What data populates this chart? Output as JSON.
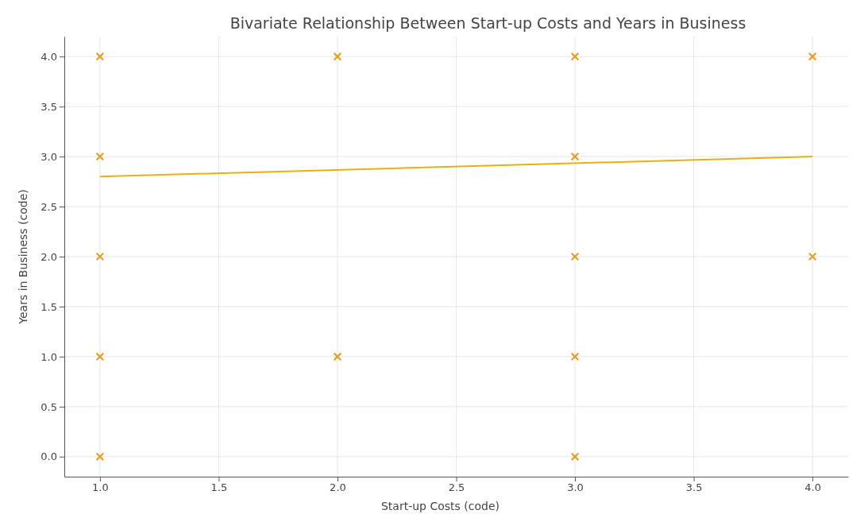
{
  "chart_data": {
    "type": "scatter",
    "title": "Bivariate Relationship Between Start-up Costs and Years in Business",
    "xlabel": "Start-up Costs (code)",
    "ylabel": "Years in Business (code)",
    "xlim": [
      0.85,
      4.15
    ],
    "ylim": [
      -0.2,
      4.2
    ],
    "xticks": [
      {
        "value": 1,
        "label": "1.0"
      },
      {
        "value": 1.5,
        "label": "1.5"
      },
      {
        "value": 2,
        "label": "2.0"
      },
      {
        "value": 2.5,
        "label": "2.5"
      },
      {
        "value": 3,
        "label": "3.0"
      },
      {
        "value": 3.5,
        "label": "3.5"
      },
      {
        "value": 4,
        "label": "4.0"
      }
    ],
    "yticks": [
      {
        "value": 0,
        "label": "0.0"
      },
      {
        "value": 0.5,
        "label": "0.5"
      },
      {
        "value": 1,
        "label": "1.0"
      },
      {
        "value": 1.5,
        "label": "1.5"
      },
      {
        "value": 2,
        "label": "2.0"
      },
      {
        "value": 2.5,
        "label": "2.5"
      },
      {
        "value": 3,
        "label": "3.0"
      },
      {
        "value": 3.5,
        "label": "3.5"
      },
      {
        "value": 4,
        "label": "4.0"
      }
    ],
    "grid": true,
    "series": [
      {
        "marker": "cross",
        "color": "#e0a030",
        "x": [
          1,
          1,
          1,
          1,
          1,
          2,
          2,
          3,
          3,
          3,
          3,
          3,
          4,
          4
        ],
        "values": [
          4,
          3,
          2,
          1,
          0,
          4,
          1,
          4,
          3,
          2,
          1,
          0,
          4,
          2
        ]
      },
      {
        "type": "line",
        "color": "#e8b010",
        "x": [
          1,
          4
        ],
        "values": [
          2.8,
          3.0
        ]
      }
    ]
  }
}
